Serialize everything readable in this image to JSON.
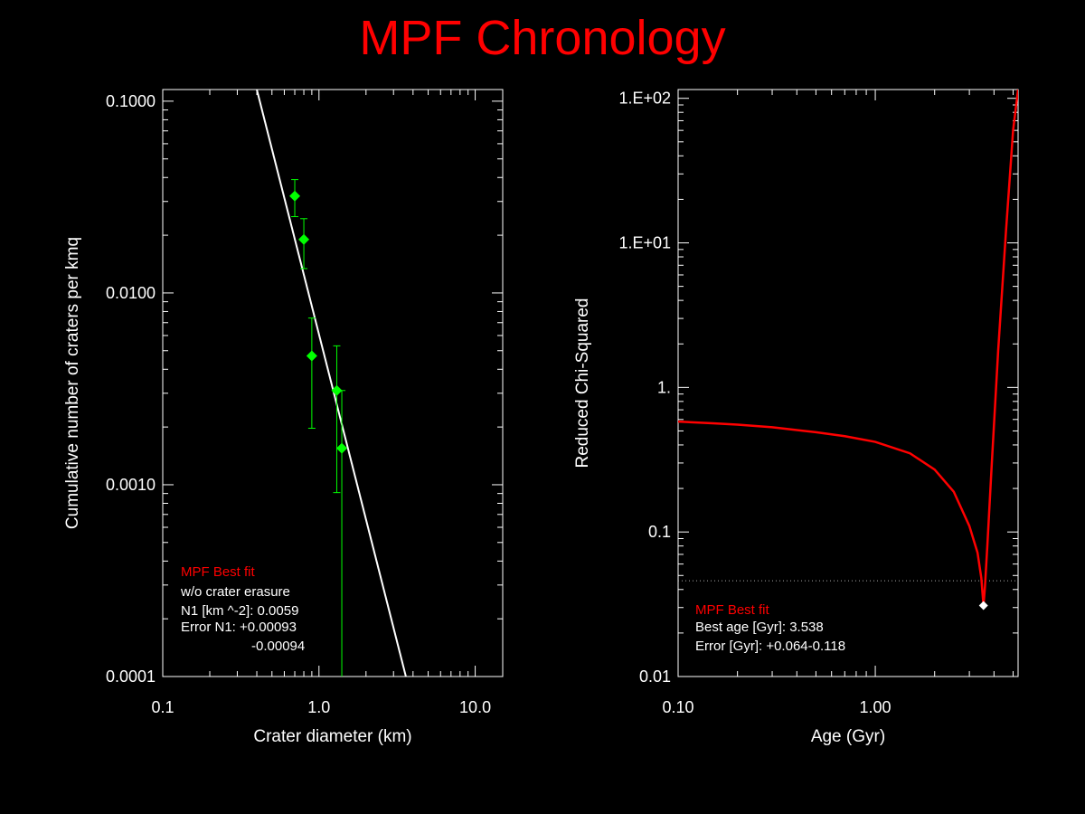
{
  "title": "MPF Chronology",
  "colors": {
    "background": "#000000",
    "title": "#ff0000",
    "axes": "#ffffff",
    "data_points": "#00ff00",
    "fit_line": "#ffffff",
    "chi_curve": "#ff0000",
    "best_fit_label": "#ff0000",
    "threshold_line": "#aaaaaa",
    "min_marker": "#ffffff"
  },
  "chart_data": [
    {
      "type": "scatter",
      "xlabel": "Crater diameter (km)",
      "ylabel": "Cumulative number of craters per kmq",
      "xscale": "log",
      "yscale": "log",
      "xlim": [
        0.1,
        15.0
      ],
      "ylim": [
        0.0001,
        0.115
      ],
      "x_ticks": [
        0.1,
        1.0,
        10.0
      ],
      "x_tick_labels": [
        "0.1",
        "1.0",
        "10.0"
      ],
      "y_ticks": [
        0.0001,
        0.001,
        0.01,
        0.1
      ],
      "y_tick_labels": [
        "0.0001",
        "0.0010",
        "0.0100",
        "0.1000"
      ],
      "points": [
        {
          "x": 0.7,
          "y": 0.032,
          "err_low": 0.025,
          "err_high": 0.039
        },
        {
          "x": 0.8,
          "y": 0.019,
          "err_low": 0.0134,
          "err_high": 0.0244
        },
        {
          "x": 0.9,
          "y": 0.0047,
          "err_low": 0.00197,
          "err_high": 0.0074
        },
        {
          "x": 1.3,
          "y": 0.0031,
          "err_low": 0.00091,
          "err_high": 0.0053
        },
        {
          "x": 1.4,
          "y": 0.00155,
          "err_low": 0.0001,
          "err_high": 0.0031
        }
      ],
      "fit_line": {
        "x": [
          0.4,
          3.6
        ],
        "y": [
          0.115,
          0.0001
        ]
      },
      "legend": {
        "title": "MPF Best fit",
        "lines": [
          "w/o crater erasure",
          "N1 [km ^-2]: 0.0059",
          "Error N1: +0.00093",
          "-0.00094"
        ]
      }
    },
    {
      "type": "line",
      "xlabel": "Age (Gyr)",
      "ylabel": "Reduced Chi-Squared",
      "xscale": "log",
      "yscale": "log",
      "xlim": [
        0.1,
        5.3
      ],
      "ylim": [
        0.01,
        115
      ],
      "x_ticks": [
        0.1,
        1.0
      ],
      "x_tick_labels": [
        "0.10",
        "1.00"
      ],
      "y_ticks": [
        0.01,
        0.1,
        1,
        10,
        100
      ],
      "y_tick_labels": [
        "0.01",
        "0.1",
        "1.",
        "1.E+01",
        "1.E+02"
      ],
      "series": [
        {
          "x": [
            0.1,
            0.15,
            0.2,
            0.3,
            0.5,
            0.7,
            1.0,
            1.5,
            2.0,
            2.5,
            3.0,
            3.3,
            3.45,
            3.538,
            3.6,
            3.7,
            3.9,
            4.2,
            4.6,
            5.0,
            5.3
          ],
          "y": [
            0.58,
            0.565,
            0.553,
            0.53,
            0.49,
            0.46,
            0.42,
            0.35,
            0.27,
            0.19,
            0.11,
            0.072,
            0.048,
            0.031,
            0.042,
            0.08,
            0.3,
            1.8,
            12,
            60,
            115
          ]
        }
      ],
      "threshold_y": 0.046,
      "best_point": {
        "x": 3.538,
        "y": 0.031
      },
      "legend": {
        "title": "MPF Best fit",
        "lines": [
          "Best age [Gyr]: 3.538",
          "Error [Gyr]: +0.064-0.118"
        ]
      }
    }
  ]
}
